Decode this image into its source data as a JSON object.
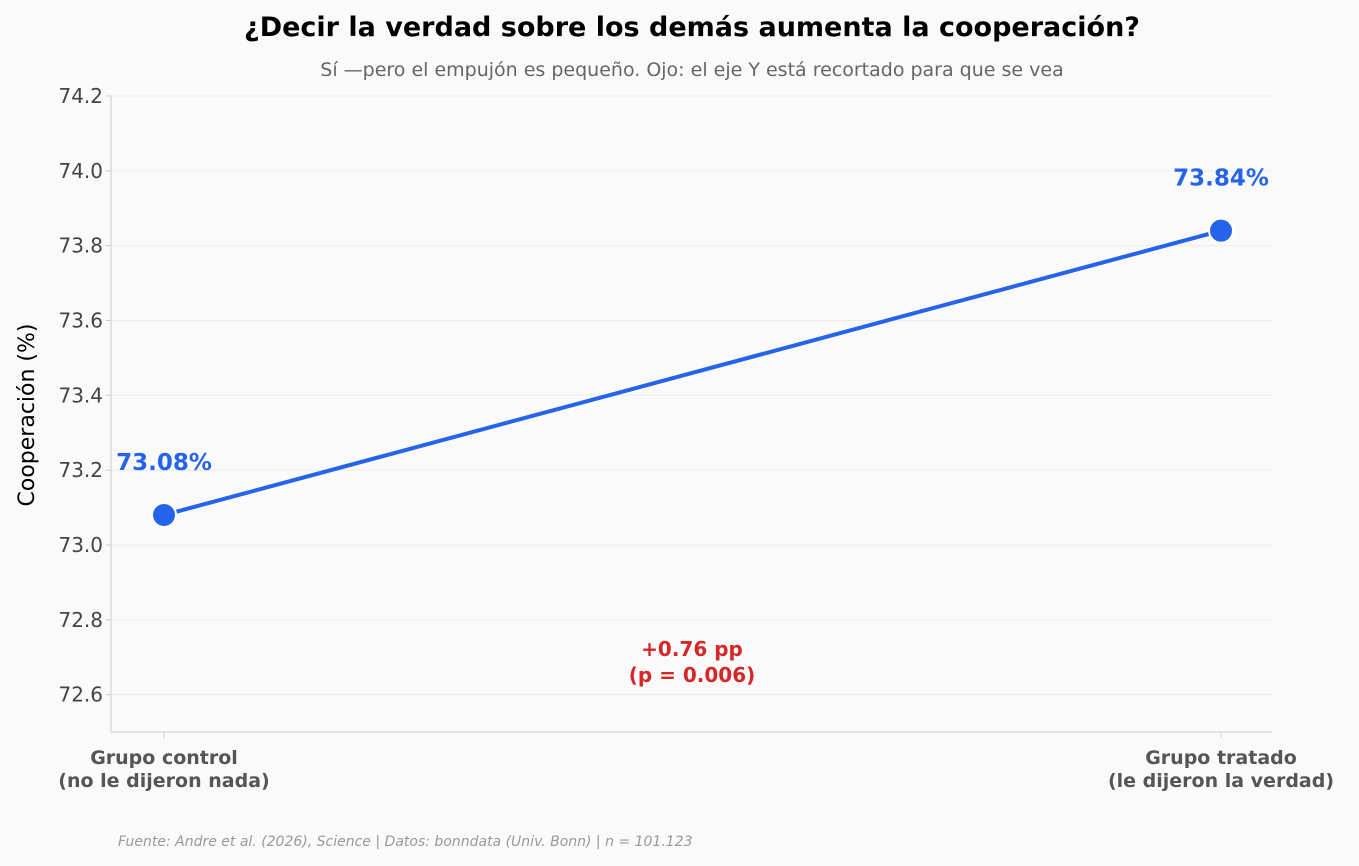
{
  "chart_data": {
    "type": "line",
    "title": "¿Decir la verdad sobre los demás aumenta la cooperación?",
    "subtitle": "Sí —pero el empujón es pequeño. Ojo: el eje Y está recortado para que se vea",
    "ylabel": "Cooperación (%)",
    "xlabel": "",
    "ylim": [
      72.5,
      74.2
    ],
    "yticks": [
      "72.6",
      "72.8",
      "73.0",
      "73.2",
      "73.4",
      "73.6",
      "73.8",
      "74.0",
      "74.2"
    ],
    "ytick_values": [
      72.6,
      72.8,
      73.0,
      73.2,
      73.4,
      73.6,
      73.8,
      74.0,
      74.2
    ],
    "categories": [
      {
        "line1": "Grupo control",
        "line2": "(no le dijeron nada)"
      },
      {
        "line1": "Grupo tratado",
        "line2": "(le dijeron la verdad)"
      }
    ],
    "values": [
      73.08,
      73.84
    ],
    "data_labels": [
      "73.08%",
      "73.84%"
    ],
    "annotation": {
      "line1": "+0.76 pp",
      "line2": "(p = 0.006)",
      "color": "#d62728"
    },
    "series_color": "#2563eb",
    "grid": "horizontal",
    "legend": "none"
  },
  "footer": "Fuente: Andre et al. (2026), Science | Datos: bonndata (Univ. Bonn) | n = 101.123"
}
